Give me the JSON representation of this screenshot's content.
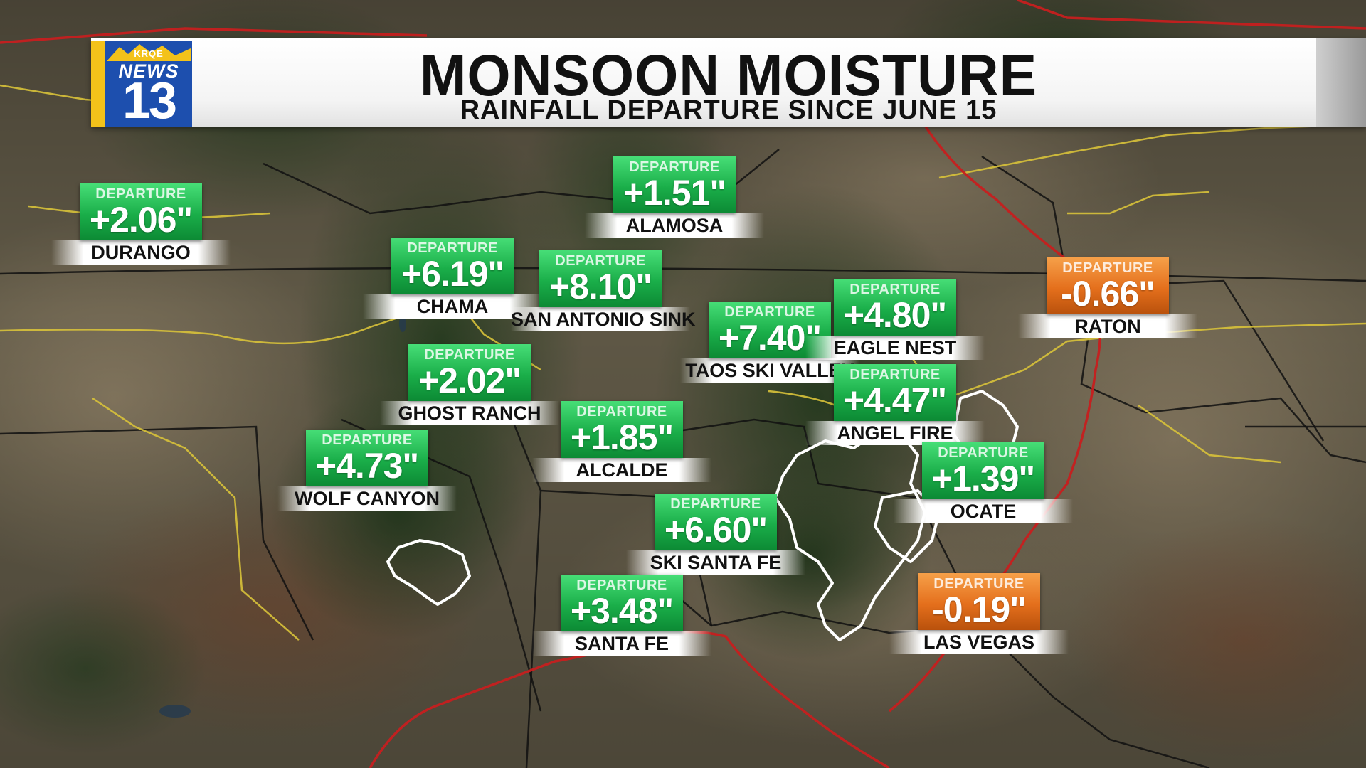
{
  "header": {
    "title": "MONSOON MOISTURE",
    "subtitle": "RAINFALL DEPARTURE SINCE JUNE 15"
  },
  "logo": {
    "callsign": "KRQE",
    "brand": "NEWS",
    "channel": "13",
    "colors": {
      "blue": "#1d4fae",
      "yellow": "#f3c21a"
    }
  },
  "colors": {
    "positive_departure": "#1aae49",
    "negative_departure": "#e46f1c",
    "state_border": "#111111",
    "highway_major": "#c61f1f",
    "highway_minor": "#d8c23a",
    "burn_scar_outline": "#ffffff"
  },
  "stations": [
    {
      "name": "DURANGO",
      "label": "DEPARTURE",
      "value": "+2.06\"",
      "status": "positive"
    },
    {
      "name": "ALAMOSA",
      "label": "DEPARTURE",
      "value": "+1.51\"",
      "status": "positive"
    },
    {
      "name": "CHAMA",
      "label": "DEPARTURE",
      "value": "+6.19\"",
      "status": "positive"
    },
    {
      "name": "SAN ANTONIO SINK",
      "label": "DEPARTURE",
      "value": "+8.10\"",
      "status": "positive"
    },
    {
      "name": "TAOS SKI VALLEY",
      "label": "DEPARTURE",
      "value": "+7.40\"",
      "status": "positive"
    },
    {
      "name": "EAGLE NEST",
      "label": "DEPARTURE",
      "value": "+4.80\"",
      "status": "positive"
    },
    {
      "name": "RATON",
      "label": "DEPARTURE",
      "value": "-0.66\"",
      "status": "negative"
    },
    {
      "name": "GHOST RANCH",
      "label": "DEPARTURE",
      "value": "+2.02\"",
      "status": "positive"
    },
    {
      "name": "ANGEL FIRE",
      "label": "DEPARTURE",
      "value": "+4.47\"",
      "status": "positive"
    },
    {
      "name": "ALCALDE",
      "label": "DEPARTURE",
      "value": "+1.85\"",
      "status": "positive"
    },
    {
      "name": "WOLF CANYON",
      "label": "DEPARTURE",
      "value": "+4.73\"",
      "status": "positive"
    },
    {
      "name": "OCATE",
      "label": "DEPARTURE",
      "value": "+1.39\"",
      "status": "positive"
    },
    {
      "name": "SKI SANTA FE",
      "label": "DEPARTURE",
      "value": "+6.60\"",
      "status": "positive"
    },
    {
      "name": "SANTA FE",
      "label": "DEPARTURE",
      "value": "+3.48\"",
      "status": "positive"
    },
    {
      "name": "LAS VEGAS",
      "label": "DEPARTURE",
      "value": "-0.19\"",
      "status": "negative"
    }
  ]
}
